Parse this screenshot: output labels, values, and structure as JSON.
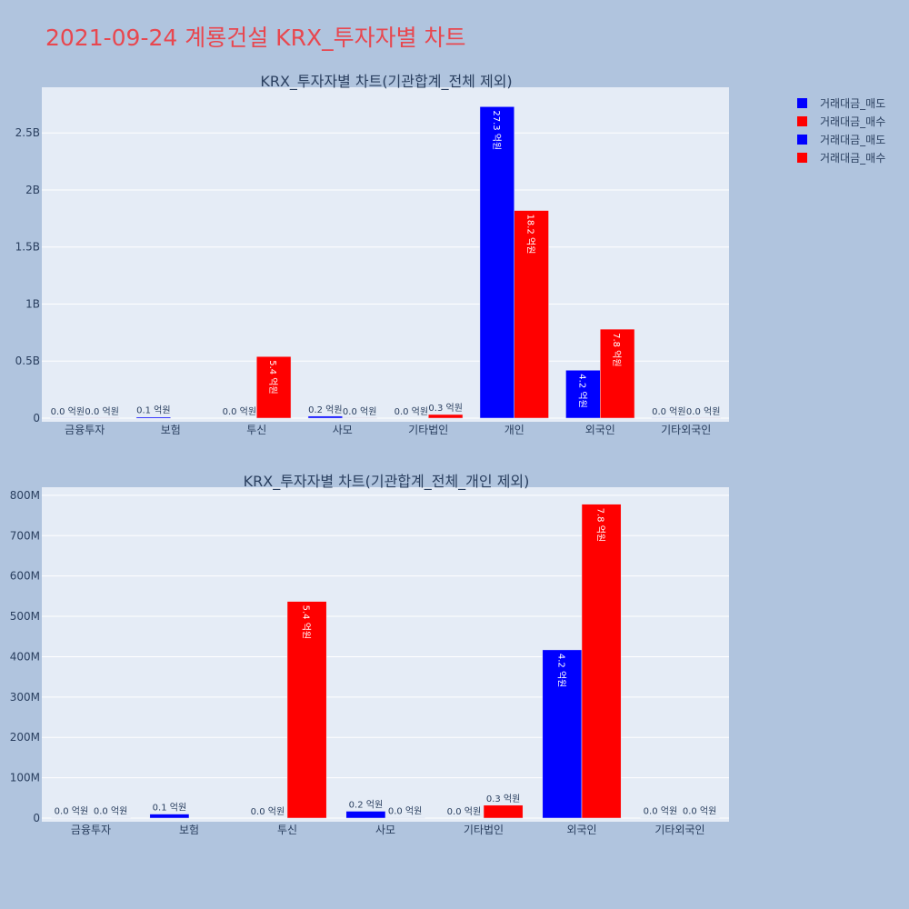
{
  "title": "2021-09-24 계룡건설 KRX_투자자별 차트",
  "legend": [
    {
      "name": "거래대금_매도",
      "color": "#0000ff"
    },
    {
      "name": "거래대금_매수",
      "color": "#ff0000"
    },
    {
      "name": "거래대금_매도",
      "color": "#0000ff"
    },
    {
      "name": "거래대금_매수",
      "color": "#ff0000"
    }
  ],
  "chart_data": [
    {
      "type": "bar",
      "title": "KRX_투자자별 차트(기관합계_전체 제외)",
      "categories": [
        "금융투자",
        "보험",
        "투신",
        "사모",
        "기타법인",
        "개인",
        "외국인",
        "기타외국인"
      ],
      "series": [
        {
          "name": "거래대금_매도",
          "color": "#0000ff",
          "values": [
            1000000,
            10000000,
            0,
            17000000,
            0,
            2730000000,
            420000000,
            1000000
          ],
          "labels": [
            "0.0 억원",
            "0.1 억원",
            "0.0 억원",
            "0.2 억원",
            "0.0 억원",
            "27.3 억원",
            "4.2 억원",
            "0.0 억원"
          ]
        },
        {
          "name": "거래대금_매수",
          "color": "#ff0000",
          "values": [
            1000000,
            0,
            540000000,
            1000000,
            32000000,
            1820000000,
            780000000,
            1000000
          ],
          "labels": [
            "0.0 억원",
            "",
            "5.4 억원",
            "0.0 억원",
            "0.3 억원",
            "18.2 억원",
            "7.8 억원",
            "0.0 억원"
          ]
        }
      ],
      "ylim": [
        0,
        2900000000
      ],
      "yticks": [
        0,
        500000000,
        1000000000,
        1500000000,
        2000000000,
        2500000000
      ],
      "ytick_labels": [
        "0",
        "0.5B",
        "1B",
        "1.5B",
        "2B",
        "2.5B"
      ],
      "grid": true
    },
    {
      "type": "bar",
      "title": "KRX_투자자별 차트(기관합계_전체_개인 제외)",
      "categories": [
        "금융투자",
        "보험",
        "투신",
        "사모",
        "기타법인",
        "외국인",
        "기타외국인"
      ],
      "series": [
        {
          "name": "거래대금_매도",
          "color": "#0000ff",
          "values": [
            1000000,
            10000000,
            0,
            17000000,
            0,
            417000000,
            1000000
          ],
          "labels": [
            "0.0 억원",
            "0.1 억원",
            "0.0 억원",
            "0.2 억원",
            "0.0 억원",
            "4.2 억원",
            "0.0 억원"
          ]
        },
        {
          "name": "거래대금_매수",
          "color": "#ff0000",
          "values": [
            1000000,
            0,
            537000000,
            1000000,
            32000000,
            778000000,
            1000000
          ],
          "labels": [
            "0.0 억원",
            "",
            "5.4 억원",
            "0.0 억원",
            "0.3 억원",
            "7.8 억원",
            "0.0 억원"
          ]
        }
      ],
      "ylim": [
        0,
        820000000
      ],
      "yticks": [
        0,
        100000000,
        200000000,
        300000000,
        400000000,
        500000000,
        600000000,
        700000000,
        800000000
      ],
      "ytick_labels": [
        "0",
        "100M",
        "200M",
        "300M",
        "400M",
        "500M",
        "600M",
        "700M",
        "800M"
      ],
      "grid": true
    }
  ]
}
